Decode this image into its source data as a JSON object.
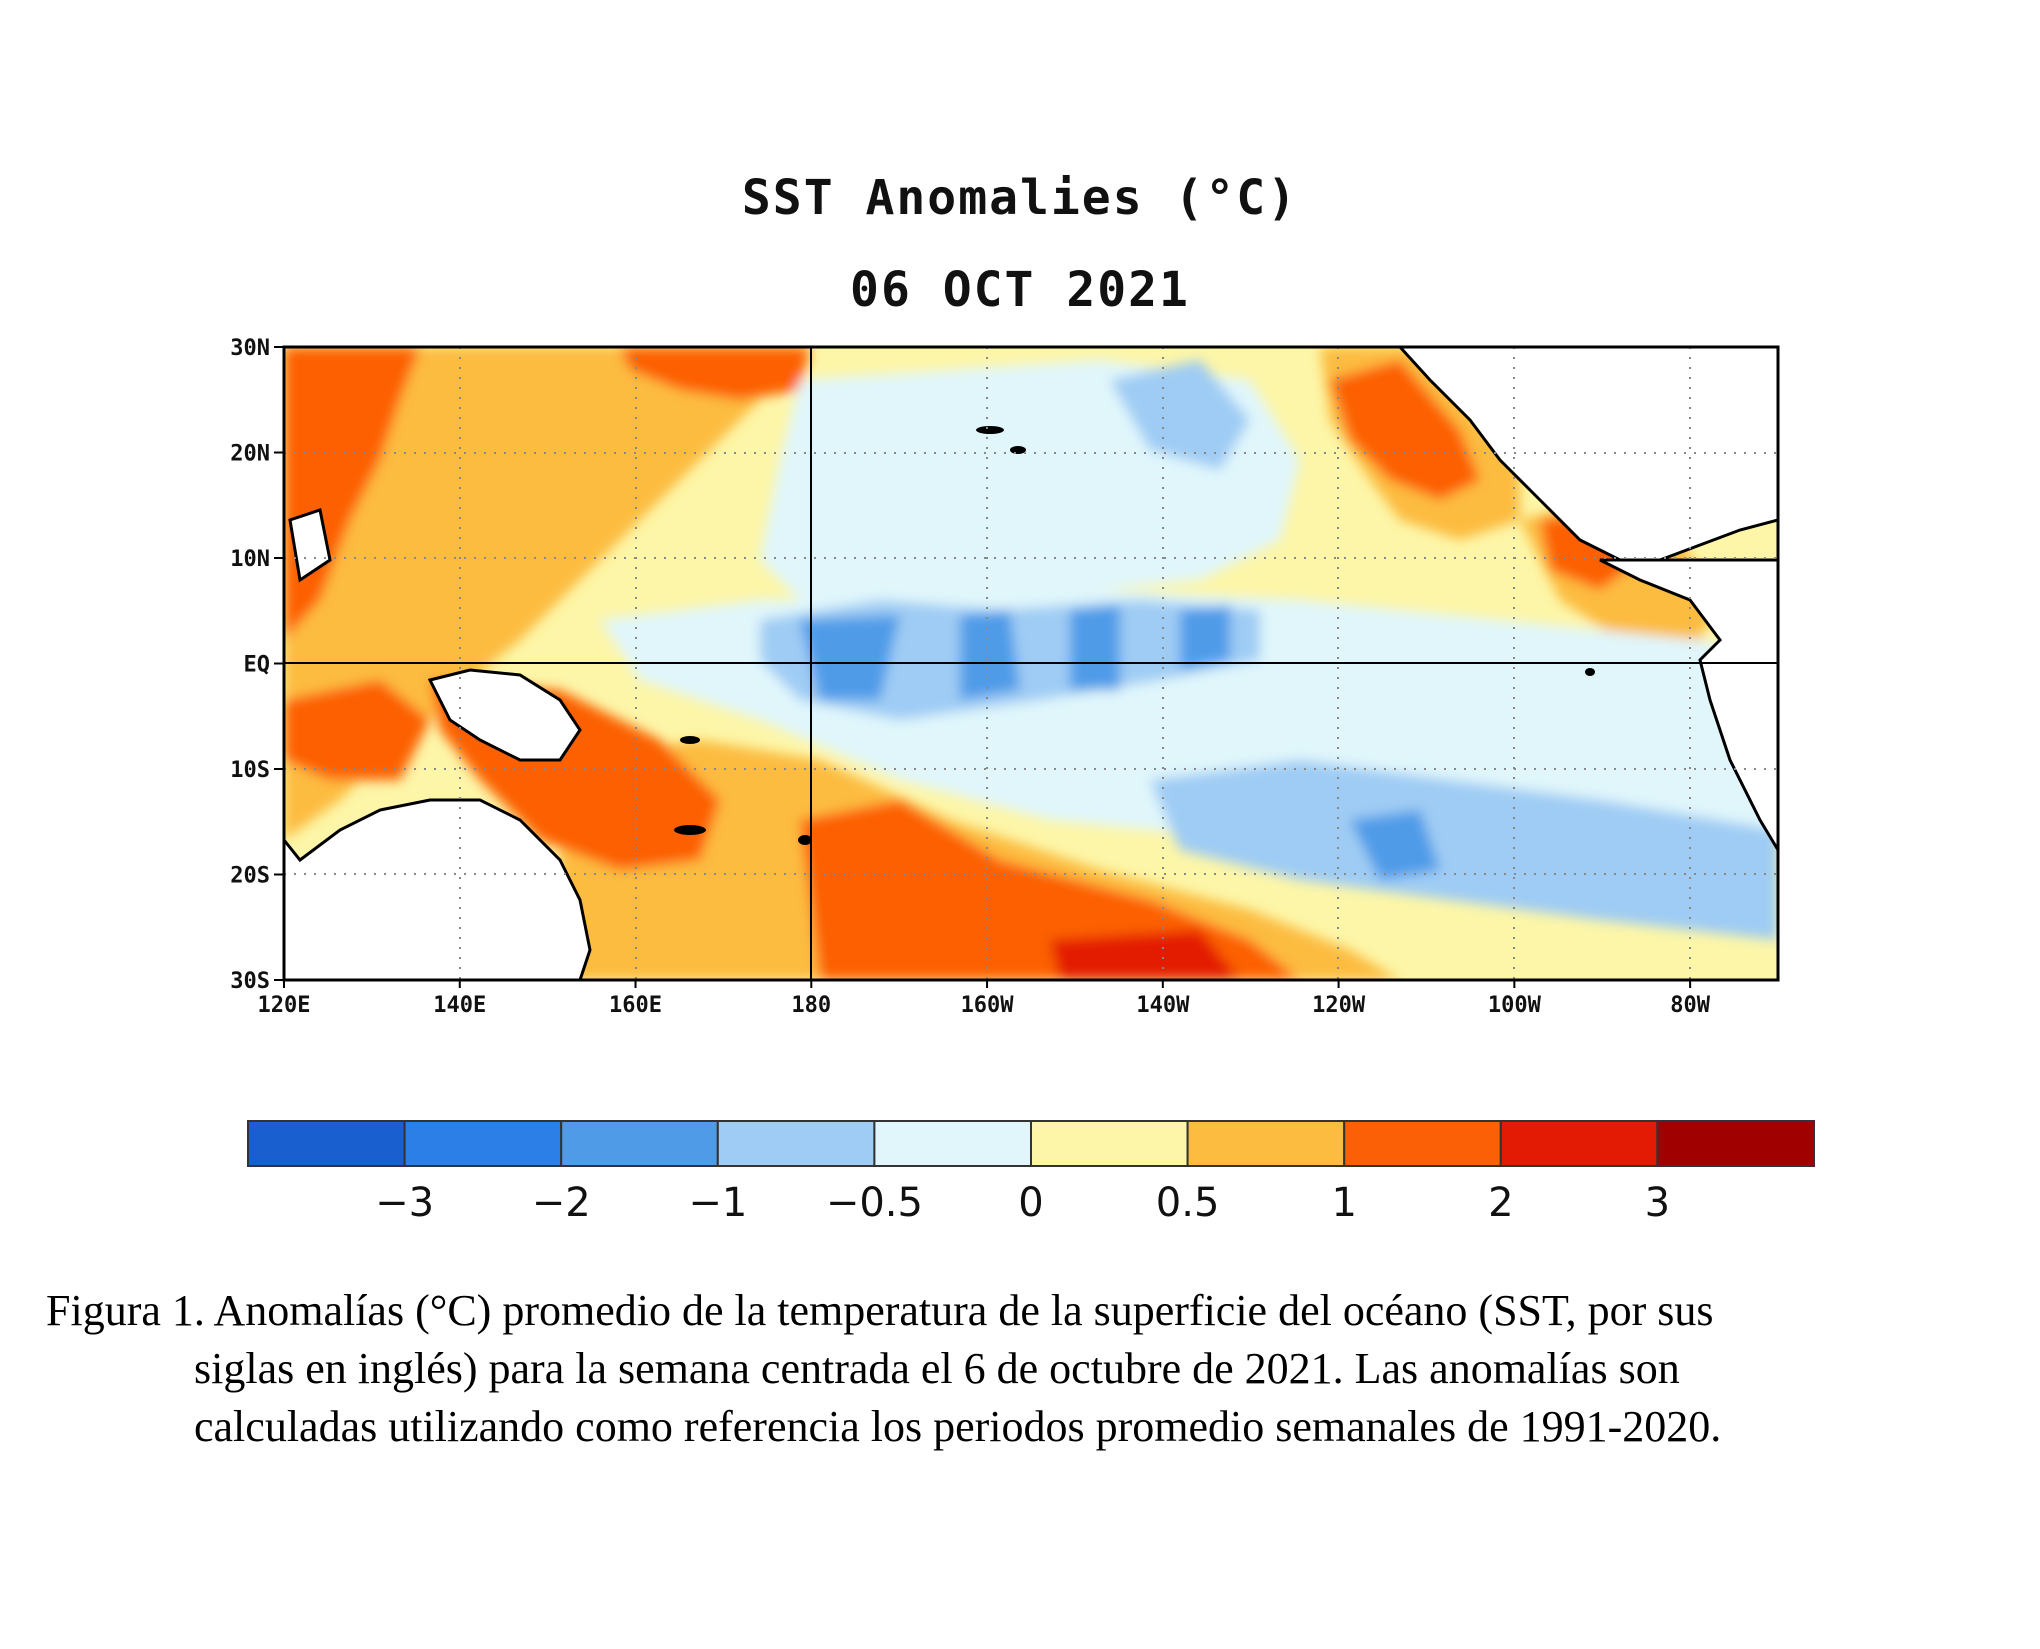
{
  "chart_data": {
    "type": "heatmap",
    "title": "SST Anomalies (°C)",
    "subtitle": "06 OCT 2021",
    "lon_range": [
      120,
      290
    ],
    "lat_range": [
      -30,
      30
    ],
    "x_ticks": [
      "120E",
      "140E",
      "160E",
      "180",
      "160W",
      "140W",
      "120W",
      "100W",
      "80W"
    ],
    "y_ticks": [
      "30N",
      "20N",
      "10N",
      "EQ",
      "10S",
      "20S",
      "30S"
    ],
    "colorbar": {
      "labels": [
        "−3",
        "−2",
        "−1",
        "−0.5",
        "0",
        "0.5",
        "1",
        "2",
        "3"
      ],
      "bounds": [
        -3,
        -2,
        -1,
        -0.5,
        0,
        0.5,
        1,
        2,
        3
      ],
      "colors": [
        "#1a5fcf",
        "#2b7fe6",
        "#4f9be8",
        "#9fccf4",
        "#e0f6fb",
        "#fdf6a8",
        "#fcbc3f",
        "#fc6006",
        "#e31a04",
        "#a00000"
      ]
    }
  },
  "caption": {
    "line1": "Figura 1. Anomalías (°C) promedio de la temperatura de la superficie del océano (SST, por sus",
    "line2": "siglas en inglés) para la semana centrada el 6 de octubre de 2021. Las anomalías son",
    "line3": "calculadas utilizando como referencia los periodos promedio semanales de 1991-2020."
  }
}
